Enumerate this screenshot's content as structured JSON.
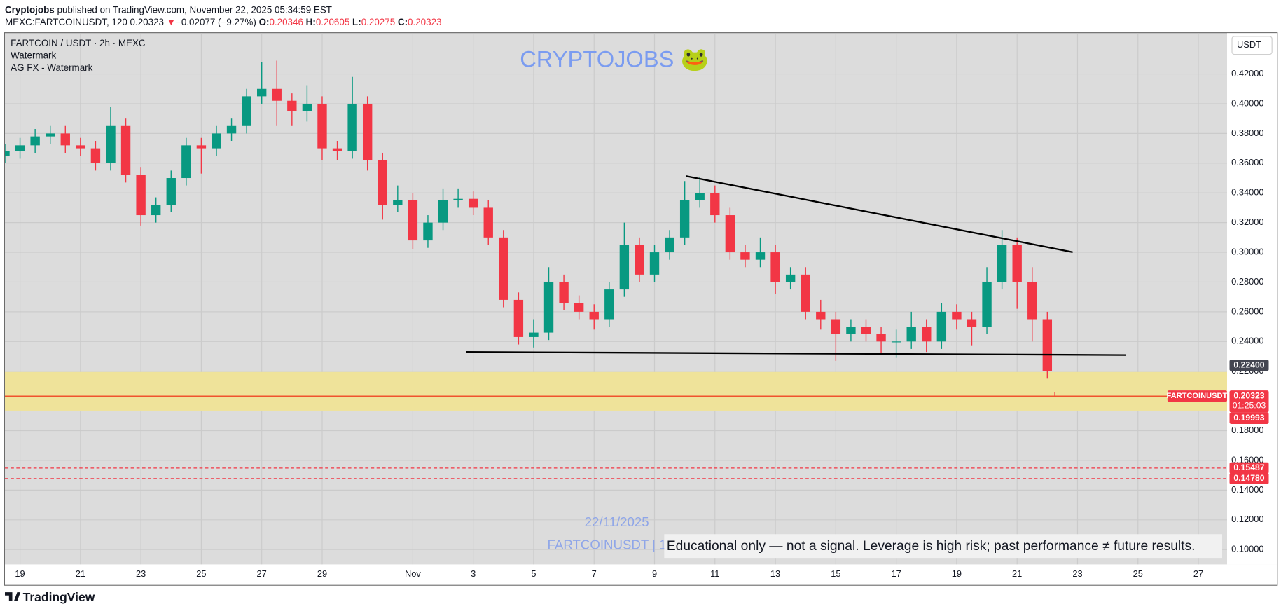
{
  "header": {
    "author": "Cryptojobs",
    "published": "published on TradingView.com, November 22, 2025 05:34:59 EST",
    "symbol": "MEXC:FARTCOINUSDT, 120",
    "change": "−0.02077 (−9.27%)",
    "ohlc_labels": [
      "O:",
      "H:",
      "L:",
      "C:"
    ]
  },
  "chart_data": {
    "type": "candlestick",
    "title": "FARTCOIN / USDT · 2h · MEXC",
    "indicators": [
      "Watermark",
      "AG FX - Watermark"
    ],
    "watermark": "CRYPTOJOBS 🐸",
    "currency": "USDT",
    "up_color": "#089981",
    "down_color": "#f23645",
    "grid": true,
    "x": [
      18.5,
      19,
      19.5,
      20,
      20.5,
      21,
      21.5,
      22,
      22.5,
      23,
      23.5,
      24,
      24.5,
      25,
      25.5,
      26,
      26.5,
      27,
      27.5,
      28,
      28.5,
      29,
      29.5,
      30,
      30.5,
      31,
      31.5,
      32,
      32.5,
      33,
      33.5,
      34,
      34.5,
      35,
      35.5,
      36,
      36.5,
      37,
      37.5,
      38,
      38.5,
      39,
      39.5,
      40,
      40.5,
      41,
      41.5,
      42,
      42.5,
      43,
      43.5,
      44,
      44.5,
      45,
      45.5,
      46,
      46.5,
      47,
      47.5,
      48,
      48.5,
      49,
      49.5,
      50,
      50.5,
      51,
      51.5,
      52,
      52.5,
      53,
      53.25
    ],
    "open": [
      0.365,
      0.368,
      0.372,
      0.378,
      0.38,
      0.372,
      0.37,
      0.36,
      0.385,
      0.352,
      0.325,
      0.332,
      0.35,
      0.372,
      0.37,
      0.38,
      0.385,
      0.405,
      0.41,
      0.402,
      0.395,
      0.4,
      0.37,
      0.368,
      0.4,
      0.362,
      0.332,
      0.335,
      0.308,
      0.32,
      0.335,
      0.336,
      0.33,
      0.31,
      0.268,
      0.243,
      0.246,
      0.28,
      0.266,
      0.26,
      0.255,
      0.275,
      0.305,
      0.285,
      0.3,
      0.31,
      0.335,
      0.34,
      0.325,
      0.3,
      0.295,
      0.3,
      0.28,
      0.285,
      0.26,
      0.255,
      0.245,
      0.25,
      0.245,
      0.24,
      0.24,
      0.25,
      0.24,
      0.26,
      0.255,
      0.25,
      0.28,
      0.305,
      0.28,
      0.255,
      0.20346
    ],
    "high": [
      0.373,
      0.377,
      0.383,
      0.385,
      0.385,
      0.377,
      0.375,
      0.398,
      0.39,
      0.357,
      0.337,
      0.355,
      0.377,
      0.377,
      0.385,
      0.39,
      0.41,
      0.428,
      0.429,
      0.407,
      0.412,
      0.405,
      0.375,
      0.418,
      0.405,
      0.367,
      0.345,
      0.34,
      0.325,
      0.343,
      0.343,
      0.341,
      0.335,
      0.315,
      0.273,
      0.255,
      0.29,
      0.285,
      0.271,
      0.265,
      0.28,
      0.32,
      0.31,
      0.305,
      0.315,
      0.348,
      0.351,
      0.345,
      0.33,
      0.305,
      0.31,
      0.305,
      0.29,
      0.29,
      0.268,
      0.26,
      0.255,
      0.255,
      0.25,
      0.248,
      0.26,
      0.255,
      0.266,
      0.265,
      0.26,
      0.29,
      0.315,
      0.31,
      0.29,
      0.26,
      0.20605
    ],
    "low": [
      0.36,
      0.363,
      0.367,
      0.373,
      0.367,
      0.365,
      0.355,
      0.355,
      0.347,
      0.318,
      0.32,
      0.327,
      0.345,
      0.353,
      0.365,
      0.375,
      0.38,
      0.4,
      0.385,
      0.385,
      0.388,
      0.362,
      0.362,
      0.363,
      0.355,
      0.322,
      0.327,
      0.302,
      0.303,
      0.315,
      0.33,
      0.325,
      0.305,
      0.263,
      0.238,
      0.236,
      0.241,
      0.261,
      0.255,
      0.248,
      0.25,
      0.27,
      0.28,
      0.28,
      0.295,
      0.305,
      0.33,
      0.32,
      0.295,
      0.29,
      0.29,
      0.272,
      0.275,
      0.255,
      0.248,
      0.227,
      0.24,
      0.24,
      0.232,
      0.229,
      0.235,
      0.233,
      0.235,
      0.248,
      0.237,
      0.245,
      0.275,
      0.262,
      0.24,
      0.215,
      0.20275
    ],
    "close": [
      0.368,
      0.372,
      0.378,
      0.38,
      0.372,
      0.37,
      0.36,
      0.385,
      0.352,
      0.325,
      0.332,
      0.35,
      0.372,
      0.37,
      0.38,
      0.385,
      0.405,
      0.41,
      0.402,
      0.395,
      0.4,
      0.37,
      0.368,
      0.4,
      0.362,
      0.332,
      0.335,
      0.308,
      0.32,
      0.335,
      0.336,
      0.33,
      0.31,
      0.268,
      0.243,
      0.246,
      0.28,
      0.266,
      0.26,
      0.255,
      0.275,
      0.305,
      0.285,
      0.3,
      0.31,
      0.335,
      0.34,
      0.325,
      0.3,
      0.295,
      0.3,
      0.28,
      0.285,
      0.26,
      0.255,
      0.245,
      0.25,
      0.245,
      0.24,
      0.24,
      0.25,
      0.24,
      0.26,
      0.255,
      0.25,
      0.28,
      0.305,
      0.28,
      0.255,
      0.22,
      0.20323
    ],
    "xlim": [
      18.5,
      58.95
    ],
    "xticks": [
      19,
      21,
      23,
      25,
      27,
      29,
      {
        "value": 32,
        "label": "Nov"
      },
      {
        "value": 34,
        "label": "3"
      },
      {
        "value": 36,
        "label": "5"
      },
      {
        "value": 38,
        "label": "7"
      },
      {
        "value": 40,
        "label": "9"
      },
      {
        "value": 42,
        "label": "11"
      },
      {
        "value": 44,
        "label": "13"
      },
      {
        "value": 46,
        "label": "15"
      },
      {
        "value": 48,
        "label": "17"
      },
      {
        "value": 50,
        "label": "19"
      },
      {
        "value": 52,
        "label": "21"
      },
      {
        "value": 54,
        "label": "23"
      },
      {
        "value": 56,
        "label": "25"
      },
      {
        "value": 58,
        "label": "27"
      }
    ],
    "ylim": [
      0.09,
      0.4475
    ],
    "yticks": [
      {
        "value": 0.1,
        "label": "0.10000"
      },
      {
        "value": 0.12,
        "label": "0.12000"
      },
      {
        "value": 0.14,
        "label": "0.14000"
      },
      {
        "value": 0.16,
        "label": "0.16000"
      },
      {
        "value": 0.18,
        "label": "0.18000"
      },
      {
        "value": 0.2,
        "label": "0.20000"
      },
      {
        "value": 0.22,
        "label": "0.22000"
      },
      {
        "value": 0.24,
        "label": "0.24000"
      },
      {
        "value": 0.26,
        "label": "0.26000"
      },
      {
        "value": 0.28,
        "label": "0.28000"
      },
      {
        "value": 0.3,
        "label": "0.30000"
      },
      {
        "value": 0.32,
        "label": "0.32000"
      },
      {
        "value": 0.34,
        "label": "0.34000"
      },
      {
        "value": 0.36,
        "label": "0.36000"
      },
      {
        "value": 0.38,
        "label": "0.38000"
      },
      {
        "value": 0.4,
        "label": "0.40000"
      },
      {
        "value": 0.42,
        "label": "0.42000"
      }
    ],
    "trendlines": [
      {
        "x": [
          41.05,
          53.84
        ],
        "y": [
          0.3513,
          0.3001
        ]
      },
      {
        "x": [
          33.76,
          55.6
        ],
        "y": [
          0.233,
          0.2309
        ]
      }
    ],
    "zone": [
      0.1935,
      0.2195
    ],
    "zone_color": "#efe39a",
    "price_labels": [
      {
        "value": 0.224,
        "label": "0.22400",
        "color": "#434651",
        "line": false
      },
      {
        "value": 0.19993,
        "label": "0.19993",
        "color": "#f23645",
        "line": false
      },
      {
        "value": 0.15487,
        "label": "0.15487",
        "color": "#f23645",
        "line": true
      },
      {
        "value": 0.1478,
        "label": "0.14780",
        "color": "#f23645",
        "line": true
      }
    ],
    "last_symbol": "FARTCOINUSDT",
    "countdown": "01:25:03",
    "date_stamp": "22/11/2025",
    "footer_symbol": "FARTCOINUSDT | 1",
    "disclaimer": "Educational only — not a signal. Leverage is high risk; past performance ≠ future results."
  },
  "logo": "TradingView"
}
